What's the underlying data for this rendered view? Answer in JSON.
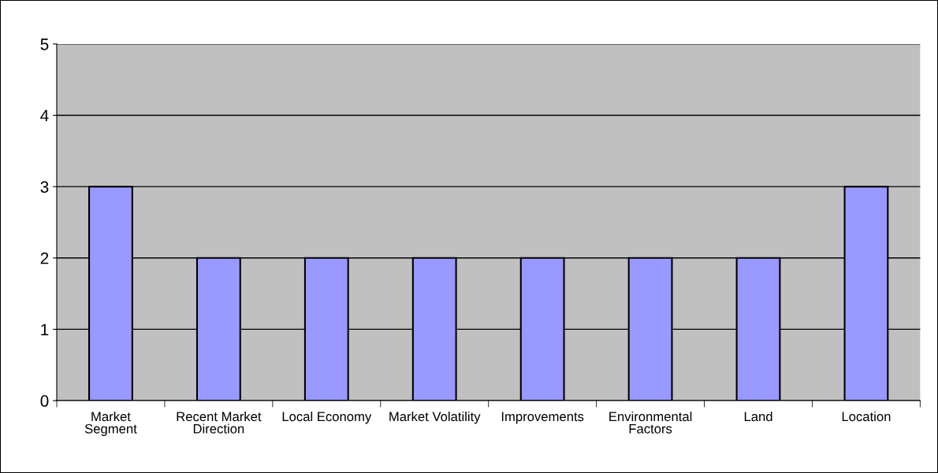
{
  "chart_data": {
    "type": "bar",
    "categories": [
      "Market\nSegment",
      "Recent Market\nDirection",
      "Local Economy",
      "Market Volatility",
      "Improvements",
      "Environmental\nFactors",
      "Land",
      "Location"
    ],
    "values": [
      3,
      2,
      2,
      2,
      2,
      2,
      2,
      3
    ],
    "color": "#9999ff",
    "ylim": [
      0,
      5
    ],
    "yticks": [
      0,
      1,
      2,
      3,
      4,
      5
    ],
    "grid": "y"
  }
}
